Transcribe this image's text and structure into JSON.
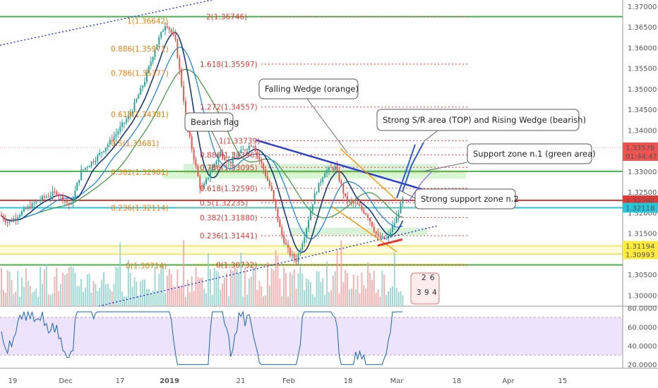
{
  "chart_data": {
    "type": "candlestick",
    "price_axis": {
      "ticks": [
        "1.37000",
        "1.36500",
        "1.36000",
        "1.35500",
        "1.35000",
        "1.34500",
        "1.34000",
        "1.33500",
        "1.33000",
        "1.32500",
        "1.32000",
        "1.31500",
        "1.31000",
        "1.30500",
        "1.30000"
      ],
      "ylim": [
        1.2975,
        1.3715
      ]
    },
    "price_badges": [
      {
        "text": "1.33578",
        "sub": "01:44:47",
        "price": 1.33578,
        "color": "#ef5350"
      },
      {
        "text": "1.32296",
        "price": 1.32296,
        "color": "#e53935"
      },
      {
        "text": "1.32118",
        "price": 1.32118,
        "color": "#26c6da"
      },
      {
        "text": "1.31194",
        "price": 1.31194,
        "color": "#ffeb3b",
        "dark": true
      },
      {
        "text": "1.30993",
        "price": 1.30993,
        "color": "#ffeb3b",
        "dark": true
      }
    ],
    "rsi_axis": {
      "ticks": [
        "80.0000",
        "60.0000",
        "40.0000",
        "20.0000"
      ],
      "ylim": [
        16,
        82
      ]
    },
    "time_axis": [
      "19",
      "Dec",
      "17",
      "2019",
      "21",
      "Feb",
      "18",
      "Mar",
      "18",
      "Apr",
      "15"
    ],
    "horizontal_levels": [
      {
        "price": 1.36746,
        "color": "#4caf50",
        "style": "solid"
      },
      {
        "price": 1.33,
        "color": "#4caf50",
        "style": "solid"
      },
      {
        "price": 1.32296,
        "color": "#e53935",
        "style": "solid"
      },
      {
        "price": 1.32118,
        "color": "#26c6da",
        "style": "solid"
      },
      {
        "price": 1.31194,
        "color": "#f9e04b",
        "style": "solid"
      },
      {
        "price": 1.30993,
        "color": "#f9e04b",
        "style": "solid"
      },
      {
        "price": 1.30732,
        "color": "#4caf50",
        "style": "solid"
      }
    ],
    "fib_retracement_orange": [
      {
        "label": "1(1.36642)",
        "price": 1.36642
      },
      {
        "label": "0.886(1.35971)",
        "price": 1.35971
      },
      {
        "label": "0.786(1.35377)",
        "price": 1.35377
      },
      {
        "label": "0.618(1.34381)",
        "price": 1.34381
      },
      {
        "label": "0.5(1.33681)",
        "price": 1.33681
      },
      {
        "label": "0.382(1.32981)",
        "price": 1.32981
      },
      {
        "label": "0.236(1.32114)",
        "price": 1.32114
      },
      {
        "label": "0(1.30714)",
        "price": 1.30714
      }
    ],
    "fib_extension_red": [
      {
        "label": "2(1.36746)",
        "price": 1.36746
      },
      {
        "label": "1.618(1.35597)",
        "price": 1.35597
      },
      {
        "label": "1.272(1.34557)",
        "price": 1.34557
      },
      {
        "label": "1(1.33739)",
        "price": 1.33739
      },
      {
        "label": "0.886(1.33396)",
        "price": 1.33396
      },
      {
        "label": "0.786(1.33095)",
        "price": 1.33095
      },
      {
        "label": "0.618(1.32590)",
        "price": 1.3259
      },
      {
        "label": "0.5(1.32235)",
        "price": 1.32235
      },
      {
        "label": "0.382(1.31880)",
        "price": 1.3188
      },
      {
        "label": "0.236(1.31441)",
        "price": 1.31441
      },
      {
        "label": "0(1.30732)",
        "price": 1.30732
      }
    ],
    "annotations": [
      {
        "text": "Falling Wedge (orange)"
      },
      {
        "text": "Bearish flag"
      },
      {
        "text": "Strong S/R area (TOP) and Rising Wedge (bearish)"
      },
      {
        "text": "Support zone n.1 (green area)"
      },
      {
        "text": "Strong support zone n.2"
      }
    ],
    "badge_digits": [
      "2",
      "6",
      "3",
      "9",
      "4"
    ]
  },
  "colors": {
    "bull": "#26a69a",
    "bear": "#ef5350",
    "ma_dark": "#1a3a7a",
    "ma_blue": "#1e88e5",
    "ma_green": "#43a047",
    "rsi_line": "#1565c0",
    "rsi_band": "#ede4fb"
  }
}
